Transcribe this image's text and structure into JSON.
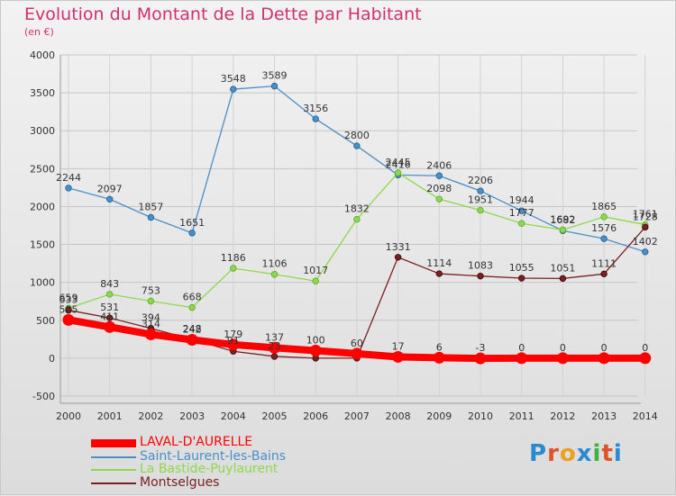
{
  "header": {
    "title": "Evolution du Montant de la Dette par Habitant",
    "unit": "(en €)"
  },
  "brand": {
    "text": "Proxiti"
  },
  "chart_data": {
    "type": "line",
    "title": "Evolution du Montant de la Dette par Habitant",
    "subtitle": "(en €)",
    "xlabel": "",
    "ylabel": "",
    "x": [
      "2000",
      "2001",
      "2002",
      "2003",
      "2004",
      "2005",
      "2006",
      "2007",
      "2008",
      "2009",
      "2010",
      "2011",
      "2012",
      "2013",
      "2014"
    ],
    "ylim": [
      -500,
      4000
    ],
    "yticks": [
      -500,
      0,
      500,
      1000,
      1500,
      2000,
      2500,
      3000,
      3500,
      4000
    ],
    "grid": true,
    "legend_position": "bottom-left",
    "series": [
      {
        "name": "Saint-Laurent-les-Bains",
        "color": "#4a8fc8",
        "values": [
          2244,
          2097,
          1857,
          1651,
          3548,
          3589,
          3156,
          2800,
          2416,
          2406,
          2206,
          1944,
          1682,
          1576,
          1402
        ],
        "labels": [
          "2244",
          "2097",
          "1857",
          "1651",
          "3548",
          "3589",
          "3156",
          "2800",
          "2416",
          "2406",
          "2206",
          "1944",
          "1682",
          "1576",
          "1402"
        ]
      },
      {
        "name": "La Bastide-Puylaurent",
        "color": "#8ed84e",
        "values": [
          659,
          843,
          753,
          668,
          1186,
          1106,
          1017,
          1832,
          2445,
          2098,
          1951,
          1777,
          1692,
          1865,
          1761
        ],
        "labels": [
          "659",
          "843",
          "753",
          "668",
          "1186",
          "1106",
          "1017",
          "1832",
          "2445",
          "2098",
          "1951",
          "1777",
          "1692",
          "1865",
          "1761"
        ]
      },
      {
        "name": "Montselgues",
        "color": "#7a2020",
        "values": [
          633,
          531,
          394,
          248,
          91,
          23,
          0,
          0,
          1331,
          1114,
          1083,
          1055,
          1051,
          1111,
          1728
        ],
        "labels": [
          "633",
          "531",
          "394",
          "248",
          "91",
          "23",
          "",
          "",
          "1331",
          "1114",
          "1083",
          "1055",
          "1051",
          "1111",
          "1728"
        ]
      },
      {
        "name": "LAVAL-D'AURELLE",
        "color": "#ff0000",
        "values": [
          505,
          411,
          314,
          242,
          179,
          137,
          100,
          60,
          17,
          6,
          -3,
          0,
          0,
          0,
          0
        ],
        "labels": [
          "505",
          "411",
          "314",
          "242",
          "179",
          "137",
          "100",
          "60",
          "17",
          "6",
          "-3",
          "0",
          "0",
          "0",
          "0"
        ]
      }
    ]
  },
  "legend": [
    {
      "name": "LAVAL-D'AURELLE",
      "color": "#ff0000"
    },
    {
      "name": "Saint-Laurent-les-Bains",
      "color": "#4a8fc8"
    },
    {
      "name": "La Bastide-Puylaurent",
      "color": "#8ed84e"
    },
    {
      "name": "Montselgues",
      "color": "#7a2020"
    }
  ]
}
